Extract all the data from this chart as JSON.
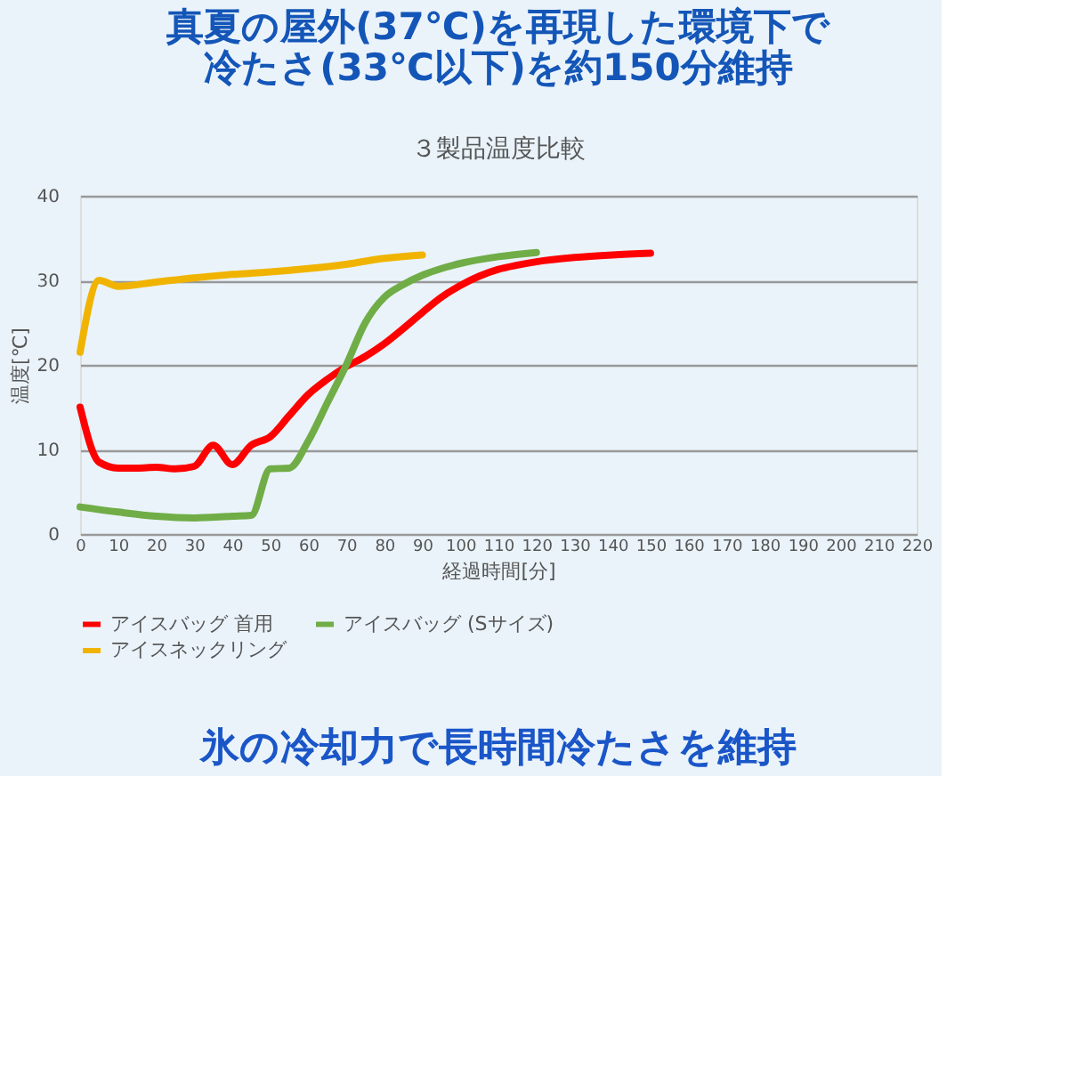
{
  "chart_data": {
    "type": "line",
    "title": [
      "真夏の屋外(37℃)を再現した環境下で",
      "冷たさ(33℃以下)を約150分維持"
    ],
    "subtitle": "３製品温度比較",
    "xlabel": "経過時間[分]",
    "ylabel": "温度[℃]",
    "xlim": [
      0,
      220
    ],
    "xticks": [
      0,
      10,
      20,
      30,
      40,
      50,
      60,
      70,
      80,
      90,
      100,
      110,
      120,
      130,
      140,
      150,
      160,
      170,
      180,
      190,
      200,
      210,
      220
    ],
    "ylim": [
      0,
      40
    ],
    "yticks": [
      0,
      10,
      20,
      30,
      40
    ],
    "grid": "y",
    "legend": "bottom left",
    "line_style": "solid",
    "marker": "none",
    "annotations": [
      "氷の冷却力で長時間冷たさを維持"
    ],
    "series": [
      {
        "name": "アイスバッグ 首用",
        "color": "#ff0000",
        "x": [
          0,
          5,
          10,
          15,
          20,
          25,
          30,
          35,
          40,
          45,
          50,
          55,
          60,
          65,
          70,
          75,
          80,
          85,
          90,
          95,
          100,
          105,
          110,
          115,
          120,
          130,
          140,
          150
        ],
        "values": [
          15,
          8.5,
          7.8,
          7.8,
          7.9,
          7.7,
          8.0,
          10.5,
          8.2,
          10.5,
          11.5,
          14,
          16.5,
          18.3,
          19.8,
          21,
          22.5,
          24.3,
          26.2,
          28,
          29.4,
          30.5,
          31.3,
          31.8,
          32.2,
          32.7,
          33,
          33.2
        ]
      },
      {
        "name": "アイスバッグ (Sサイズ)",
        "color": "#70ad47",
        "x": [
          0,
          10,
          20,
          30,
          40,
          45,
          50,
          55,
          60,
          65,
          70,
          75,
          80,
          85,
          90,
          95,
          100,
          110,
          120
        ],
        "values": [
          3.2,
          2.6,
          2.1,
          1.9,
          2.1,
          2.2,
          7.7,
          7.8,
          11,
          15.5,
          20,
          25,
          28,
          29.5,
          30.6,
          31.4,
          32,
          32.8,
          33.3
        ]
      },
      {
        "name": "アイスネックリング",
        "color": "#f0b400",
        "x": [
          0,
          5,
          10,
          20,
          30,
          40,
          50,
          60,
          70,
          80,
          90
        ],
        "values": [
          21.5,
          30,
          29.3,
          29.8,
          30.3,
          30.7,
          31,
          31.4,
          31.9,
          32.6,
          33.0
        ]
      }
    ]
  }
}
